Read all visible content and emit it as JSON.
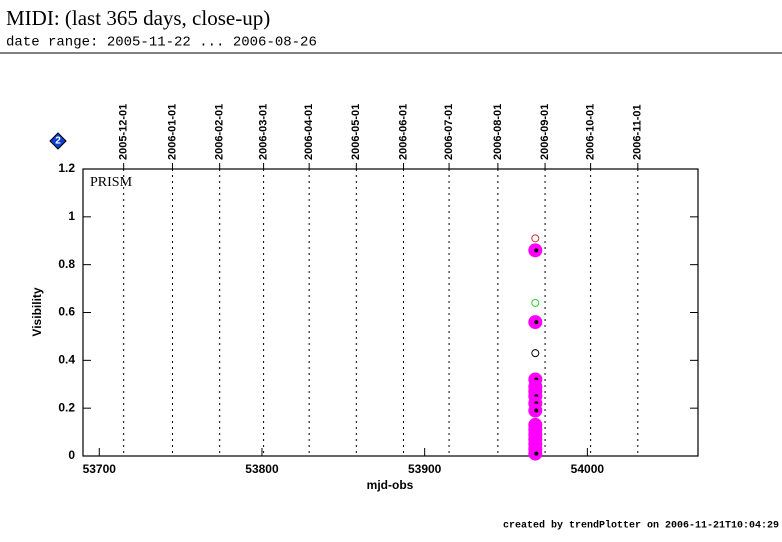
{
  "chart_data": {
    "type": "scatter",
    "title": "MIDI: (last 365 days, close-up)",
    "subtitle": "date range: 2005-11-22 ... 2006-08-26",
    "badge": "2",
    "annotation": "PRISM",
    "x_label": "mjd-obs",
    "y_label": "Visibility",
    "footer": "created by trendPlotter on 2006-11-21T10:04:29",
    "xlim": [
      53690,
      54068
    ],
    "ylim": [
      0,
      1.2
    ],
    "xticks": [
      53700,
      53800,
      53900,
      54000
    ],
    "yticks": [
      0,
      0.2,
      0.4,
      0.6,
      0.8,
      1,
      1.2
    ],
    "x2ticks": [
      {
        "value": 53715,
        "label": "2005-12-01"
      },
      {
        "value": 53745,
        "label": "2006-01-01"
      },
      {
        "value": 53774,
        "label": "2006-02-01"
      },
      {
        "value": 53801,
        "label": "2006-03-01"
      },
      {
        "value": 53829,
        "label": "2006-04-01"
      },
      {
        "value": 53858,
        "label": "2006-05-01"
      },
      {
        "value": 53887,
        "label": "2006-06-01"
      },
      {
        "value": 53915,
        "label": "2006-07-01"
      },
      {
        "value": 53945,
        "label": "2006-08-01"
      },
      {
        "value": 53974,
        "label": "2006-09-01"
      },
      {
        "value": 54002,
        "label": "2006-10-01"
      },
      {
        "value": 54031,
        "label": "2006-11-01"
      }
    ],
    "series": [
      {
        "color": "#ff00ff",
        "filled": true,
        "x": [
          53968,
          53968,
          53968,
          53968,
          53968,
          53968,
          53968,
          53968,
          53968,
          53968,
          53968,
          53968,
          53968,
          53968,
          53968
        ],
        "values": [
          0.86,
          0.56,
          0.32,
          0.29,
          0.27,
          0.25,
          0.22,
          0.19,
          0.13,
          0.11,
          0.09,
          0.07,
          0.05,
          0.03,
          0.01
        ]
      },
      {
        "color": "#cc3333",
        "filled": false,
        "x": [
          53968
        ],
        "values": [
          0.91
        ]
      },
      {
        "color": "#33cc33",
        "filled": false,
        "x": [
          53968
        ],
        "values": [
          0.64
        ]
      },
      {
        "color": "#000000",
        "filled": false,
        "x": [
          53968
        ],
        "values": [
          0.43
        ]
      }
    ]
  }
}
